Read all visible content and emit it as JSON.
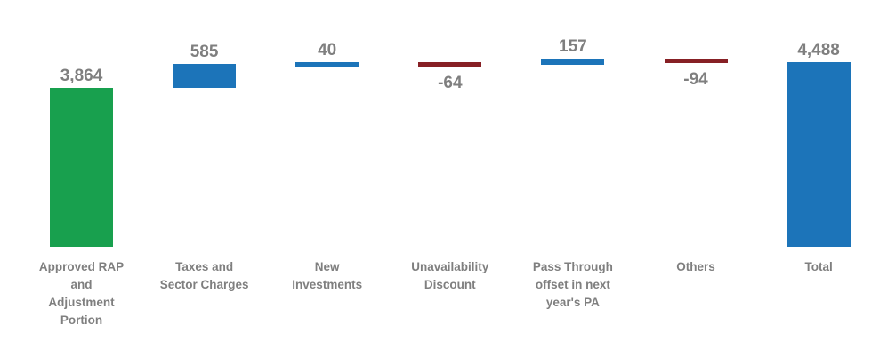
{
  "chart_data": {
    "type": "bar",
    "subtype": "waterfall",
    "categories": [
      "Approved RAP and Adjustment Portion",
      "Taxes and Sector Charges",
      "New Investments",
      "Unavailability Discount",
      "Pass Through offset in next year's PA",
      "Others",
      "Total"
    ],
    "category_lines": [
      [
        "Approved RAP",
        "and",
        "Adjustment",
        "Portion"
      ],
      [
        "Taxes and",
        "Sector Charges"
      ],
      [
        "New",
        "Investments"
      ],
      [
        "Unavailability",
        "Discount"
      ],
      [
        "Pass Through",
        "offset in next",
        "year's PA"
      ],
      [
        "Others"
      ],
      [
        "Total"
      ]
    ],
    "values": [
      3864,
      585,
      40,
      -64,
      157,
      -94,
      4488
    ],
    "value_labels": [
      "3,864",
      "585",
      "40",
      "-64",
      "157",
      "-94",
      "4,488"
    ],
    "roles": [
      "start",
      "increase",
      "increase",
      "decrease",
      "increase",
      "decrease",
      "total"
    ],
    "cumulative": [
      3864,
      4449,
      4489,
      4425,
      4582,
      4488,
      4488
    ],
    "colors": {
      "start": "#18A04E",
      "increase": "#1C74B9",
      "decrease": "#872025",
      "total": "#1C74B9",
      "labels": "#7F7F7F",
      "background": "#FFFFFF"
    },
    "ylim": [
      0,
      4582
    ],
    "axes_visible": false,
    "gridlines": false,
    "legend": "none"
  }
}
